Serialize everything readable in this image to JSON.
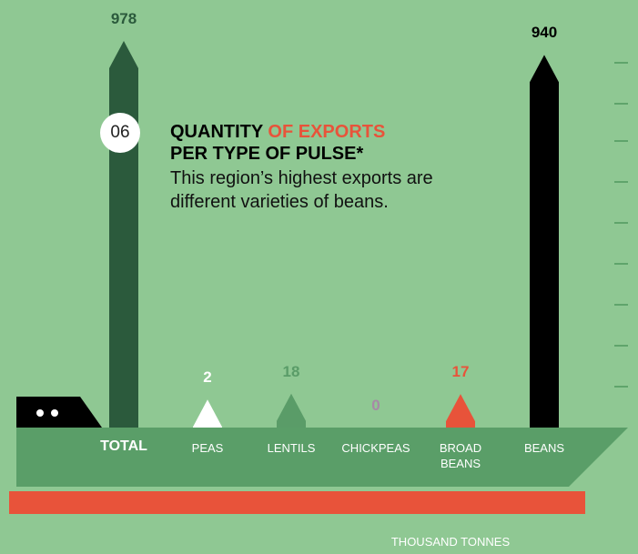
{
  "chart_data": {
    "type": "bar",
    "number": "06",
    "title": "QUANTITY ",
    "title_highlight": "OF EXPORTS",
    "title_line2": "PER TYPE OF PULSE*",
    "subtitle": "This region’s highest exports are different varieties of beans.",
    "categories": [
      "TOTAL",
      "PEAS",
      "LENTILS",
      "CHICKPEAS",
      "BROAD BEANS",
      "BEANS"
    ],
    "values": [
      978,
      2,
      18,
      0,
      17,
      940
    ],
    "colors": [
      "#2b5a3c",
      "#ffffff",
      "#5a9c68",
      "#a78aa6",
      "#e8533a",
      "#000000"
    ],
    "highlight_color": "#e8533a",
    "unit": "THOUSAND TONNES"
  }
}
